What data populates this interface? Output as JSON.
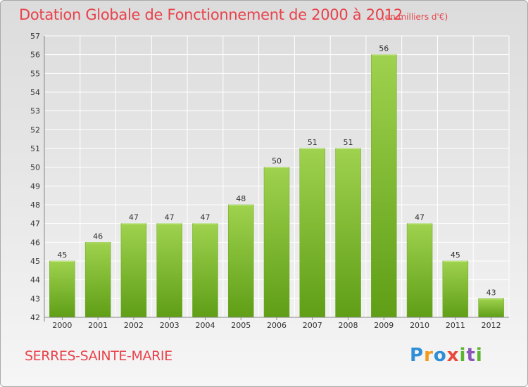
{
  "header": {
    "title": "Dotation Globale de Fonctionnement de 2000 à 2012",
    "unit": "(en milliers d'€)"
  },
  "footer": {
    "place": "SERRES-SAINTE-MARIE",
    "logo_text": "Proxiti"
  },
  "colors": {
    "title": "#e8424a",
    "bar_top": "#9fd24e",
    "bar_bottom": "#5f9e16",
    "grid": "#ffffff",
    "axis_text": "#333333"
  },
  "chart_data": {
    "type": "bar",
    "title": "Dotation Globale de Fonctionnement de 2000 à 2012",
    "subtitle": "(en milliers d'€)",
    "categories": [
      "2000",
      "2001",
      "2002",
      "2003",
      "2004",
      "2005",
      "2006",
      "2007",
      "2008",
      "2009",
      "2010",
      "2011",
      "2012"
    ],
    "values": [
      45,
      46,
      47,
      47,
      47,
      48,
      50,
      51,
      51,
      56,
      47,
      45,
      43
    ],
    "ylim": [
      42,
      57
    ],
    "yticks": [
      42,
      43,
      44,
      45,
      46,
      47,
      48,
      49,
      50,
      51,
      52,
      53,
      54,
      55,
      56,
      57
    ],
    "grid": true,
    "data_labels": true,
    "legend": "none"
  }
}
